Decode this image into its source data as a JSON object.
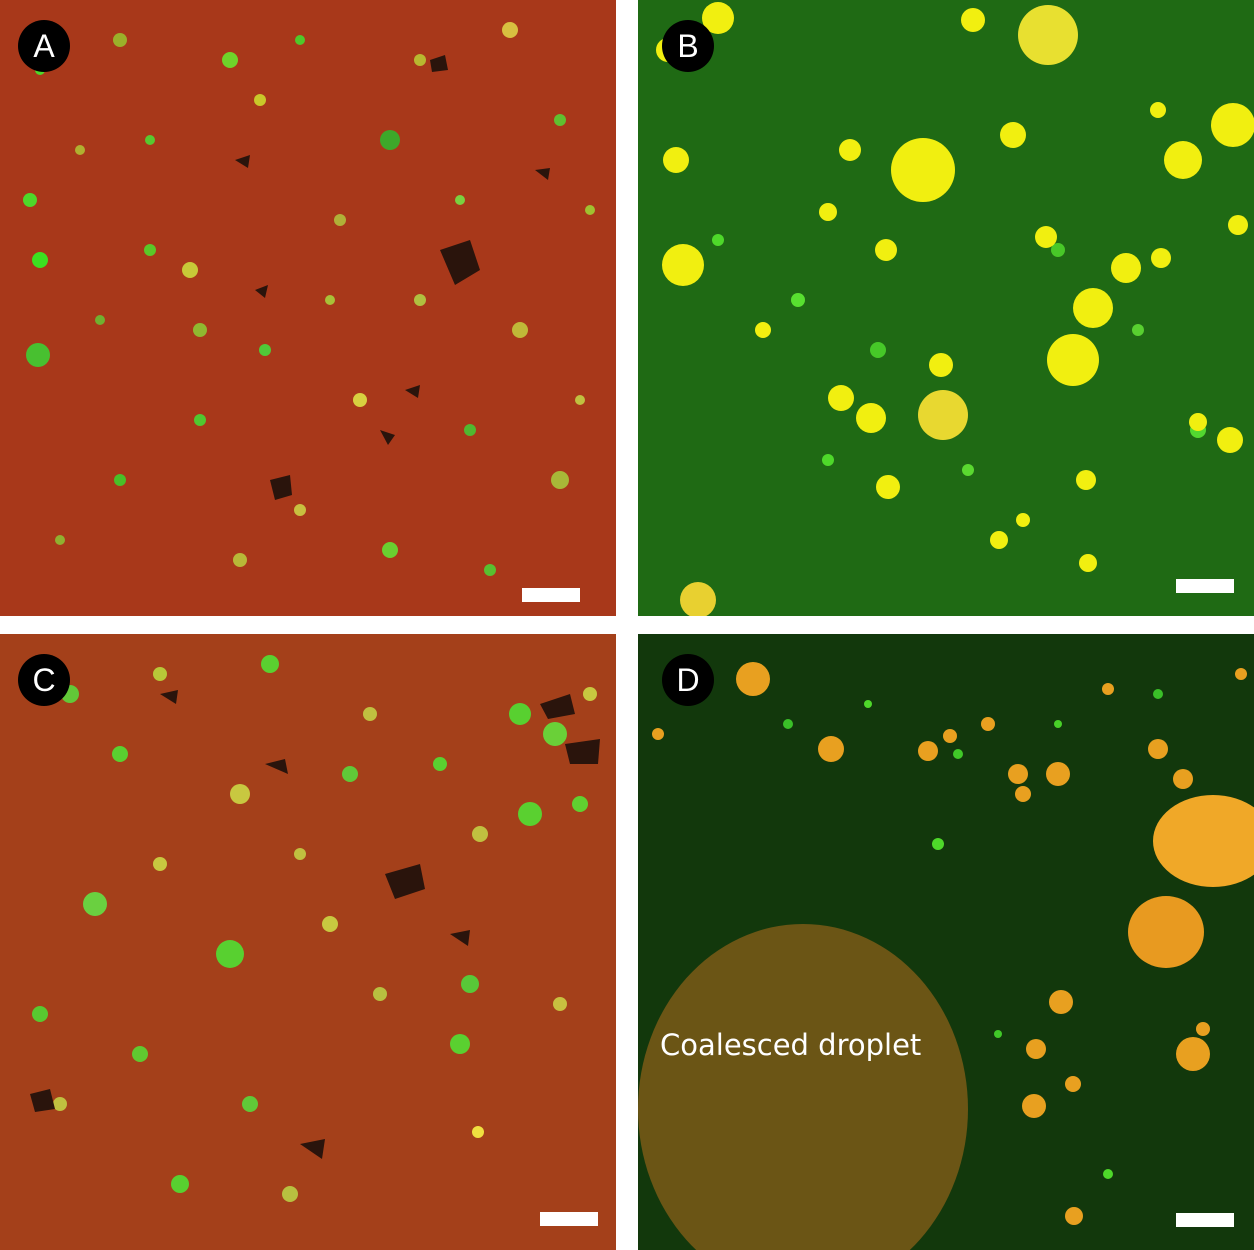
{
  "figure": {
    "panels": [
      {
        "label": "A",
        "field": "red continuous phase with dispersed green and yellow particles and dark inclusions"
      },
      {
        "label": "B",
        "field": "green continuous phase with many yellow droplets"
      },
      {
        "label": "C",
        "field": "red continuous phase with dispersed green and yellow particles and dark inclusions"
      },
      {
        "label": "D",
        "field": "dark green field with orange droplets and a large coalesced droplet"
      }
    ],
    "annotation": "Coalesced droplet"
  },
  "colors": {
    "red_phase": "#a8381a",
    "green_phase": "#1f6a14",
    "droplet_yellow": "#f1ef10",
    "droplet_orange": "#e8a020",
    "coalesced": "#6b5515",
    "particle_green": "#4ed82a",
    "dark_inclusion": "#2a140c",
    "scale_bar": "#ffffff",
    "badge": "#000000"
  }
}
